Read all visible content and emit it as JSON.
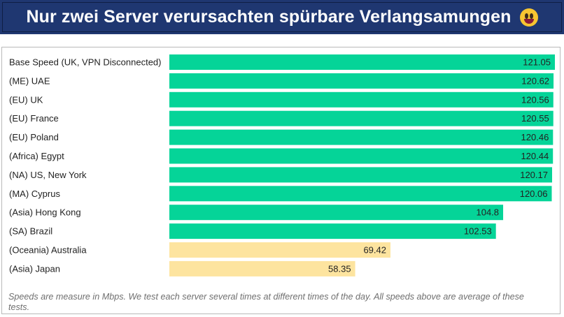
{
  "header": {
    "title": "Nur zwei Server verursachten spürbare Verlangsamungen",
    "emoji_icon": "grinning-face-icon",
    "background_color": "#1f3771"
  },
  "chart_data": {
    "type": "bar",
    "orientation": "horizontal",
    "title": "",
    "xlabel": "",
    "ylabel": "",
    "xlim": [
      0,
      121.05
    ],
    "categories": [
      "Base Speed (UK, VPN Disconnected)",
      "(ME) UAE",
      "(EU) UK",
      "(EU) France",
      "(EU) Poland",
      "(Africa) Egypt",
      "(NA) US, New York",
      "(MA) Cyprus",
      "(Asia) Hong Kong",
      "(SA) Brazil",
      "(Oceania) Australia",
      "(Asia) Japan"
    ],
    "values": [
      121.05,
      120.62,
      120.56,
      120.55,
      120.46,
      120.44,
      120.17,
      120.06,
      104.8,
      102.53,
      69.42,
      58.35
    ],
    "value_labels": [
      "121.05",
      "120.62",
      "120.56",
      "120.55",
      "120.46",
      "120.44",
      "120.17",
      "120.06",
      "104.8",
      "102.53",
      "69.42",
      "58.35"
    ],
    "colors": [
      "#05d498",
      "#05d498",
      "#05d498",
      "#05d498",
      "#05d498",
      "#05d498",
      "#05d498",
      "#05d498",
      "#05d498",
      "#05d498",
      "#fde49f",
      "#fde49f"
    ],
    "grid": false,
    "legend": "none"
  },
  "footnote": "Speeds are measure in Mbps. We test each server several times at different times of the day. All speeds above are average of these tests."
}
